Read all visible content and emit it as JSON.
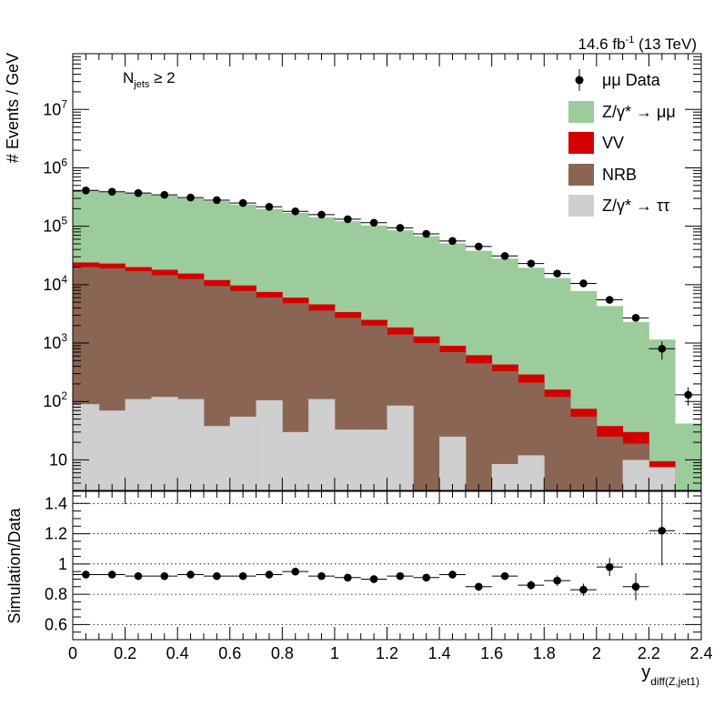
{
  "header": {
    "lumi": "14.6 fb",
    "lumi_exp": "-1",
    "energy": "(13 TeV)",
    "njets_base": "N",
    "njets_sub": "jets",
    "njets_cond": " ≥ 2"
  },
  "colors": {
    "zmm": "#9ccc9c",
    "vv": "#d40000",
    "nrb": "#8a6554",
    "ztt": "#cfcfcf",
    "data": "#000000"
  },
  "legend": [
    {
      "key": "data",
      "label": "μμ Data",
      "style": "marker"
    },
    {
      "key": "zmm",
      "label": "Z/γ* → μμ",
      "style": "box"
    },
    {
      "key": "vv",
      "label": "VV",
      "style": "box"
    },
    {
      "key": "nrb",
      "label": "NRB",
      "style": "box"
    },
    {
      "key": "ztt",
      "label": "Z/γ* → ττ",
      "style": "box"
    }
  ],
  "chart_data": [
    {
      "type": "stacked-histogram",
      "ylabel": "# Events / GeV",
      "yscale": "log",
      "ylim": [
        3,
        90000000
      ],
      "xlim": [
        0,
        2.4
      ],
      "ytick_labels": [
        "10",
        "10^2",
        "10^3",
        "10^4",
        "10^5",
        "10^6",
        "10^7"
      ],
      "ytick_values": [
        10,
        100,
        1000,
        10000,
        100000,
        1000000,
        10000000
      ],
      "bin_edges": [
        0,
        0.1,
        0.2,
        0.3,
        0.4,
        0.5,
        0.6,
        0.7,
        0.8,
        0.9,
        1.0,
        1.1,
        1.2,
        1.3,
        1.4,
        1.5,
        1.6,
        1.7,
        1.8,
        1.9,
        2.0,
        2.1,
        2.2,
        2.3,
        2.4
      ],
      "stack_tops": {
        "ztt": [
          90,
          70,
          110,
          120,
          110,
          38,
          55,
          105,
          30,
          110,
          33,
          33,
          85,
          0,
          25,
          0,
          8.5,
          12,
          0,
          0,
          0,
          10,
          7.5,
          0
        ],
        "nrb": [
          20000,
          19000,
          17000,
          14500,
          12500,
          9500,
          7800,
          6000,
          4800,
          3600,
          2700,
          2000,
          1400,
          1000,
          700,
          450,
          330,
          210,
          120,
          55,
          25,
          19,
          7.5,
          0
        ],
        "vv": [
          24000,
          23000,
          20000,
          18000,
          15500,
          12000,
          9700,
          7500,
          6000,
          4600,
          3400,
          2500,
          1850,
          1300,
          900,
          620,
          430,
          290,
          160,
          75,
          38,
          30,
          9.5,
          0
        ],
        "zmm": [
          410000,
          390000,
          370000,
          335000,
          300000,
          268000,
          235000,
          198000,
          170000,
          143000,
          122000,
          103000,
          85000,
          68000,
          51000,
          38000,
          28000,
          19500,
          13000,
          7800,
          4300,
          2300,
          1150,
          42
        ]
      },
      "data_points": [
        {
          "x": 0.05,
          "y": 410000
        },
        {
          "x": 0.15,
          "y": 390000
        },
        {
          "x": 0.25,
          "y": 370000
        },
        {
          "x": 0.35,
          "y": 345000
        },
        {
          "x": 0.45,
          "y": 310000
        },
        {
          "x": 0.55,
          "y": 280000
        },
        {
          "x": 0.65,
          "y": 250000
        },
        {
          "x": 0.75,
          "y": 215000
        },
        {
          "x": 0.85,
          "y": 180000
        },
        {
          "x": 0.95,
          "y": 158000
        },
        {
          "x": 1.05,
          "y": 132000
        },
        {
          "x": 1.15,
          "y": 115000
        },
        {
          "x": 1.25,
          "y": 94000
        },
        {
          "x": 1.35,
          "y": 74000
        },
        {
          "x": 1.45,
          "y": 56000
        },
        {
          "x": 1.55,
          "y": 45000
        },
        {
          "x": 1.65,
          "y": 31000
        },
        {
          "x": 1.75,
          "y": 23000
        },
        {
          "x": 1.85,
          "y": 15500
        },
        {
          "x": 1.95,
          "y": 10500
        },
        {
          "x": 2.05,
          "y": 5500
        },
        {
          "x": 2.15,
          "y": 2700
        },
        {
          "x": 2.25,
          "y": 800
        },
        {
          "x": 2.35,
          "y": 130
        }
      ]
    },
    {
      "type": "scatter",
      "ylabel": "Simulation/Data",
      "xlabel_base": "y",
      "xlabel_sub": "diff(Z,jet1)",
      "xlim": [
        0,
        2.4
      ],
      "ylim": [
        0.5,
        1.48
      ],
      "grid": "horizontal dotted",
      "xtick_labels": [
        "0",
        "0.2",
        "0.4",
        "0.6",
        "0.8",
        "1",
        "1.2",
        "1.4",
        "1.6",
        "1.8",
        "2",
        "2.2",
        "2.4"
      ],
      "ytick_labels": [
        "0.6",
        "0.8",
        "1",
        "1.2",
        "1.4"
      ],
      "points": [
        {
          "x": 0.05,
          "y": 0.93,
          "err": 0.01
        },
        {
          "x": 0.15,
          "y": 0.93,
          "err": 0.01
        },
        {
          "x": 0.25,
          "y": 0.92,
          "err": 0.01
        },
        {
          "x": 0.35,
          "y": 0.92,
          "err": 0.01
        },
        {
          "x": 0.45,
          "y": 0.93,
          "err": 0.01
        },
        {
          "x": 0.55,
          "y": 0.92,
          "err": 0.01
        },
        {
          "x": 0.65,
          "y": 0.92,
          "err": 0.01
        },
        {
          "x": 0.75,
          "y": 0.93,
          "err": 0.01
        },
        {
          "x": 0.85,
          "y": 0.95,
          "err": 0.01
        },
        {
          "x": 0.95,
          "y": 0.92,
          "err": 0.01
        },
        {
          "x": 1.05,
          "y": 0.91,
          "err": 0.01
        },
        {
          "x": 1.15,
          "y": 0.9,
          "err": 0.015
        },
        {
          "x": 1.25,
          "y": 0.92,
          "err": 0.015
        },
        {
          "x": 1.35,
          "y": 0.91,
          "err": 0.015
        },
        {
          "x": 1.45,
          "y": 0.93,
          "err": 0.015
        },
        {
          "x": 1.55,
          "y": 0.85,
          "err": 0.02
        },
        {
          "x": 1.65,
          "y": 0.92,
          "err": 0.025
        },
        {
          "x": 1.75,
          "y": 0.86,
          "err": 0.03
        },
        {
          "x": 1.85,
          "y": 0.89,
          "err": 0.035
        },
        {
          "x": 1.95,
          "y": 0.83,
          "err": 0.04
        },
        {
          "x": 2.05,
          "y": 0.98,
          "err": 0.06
        },
        {
          "x": 2.15,
          "y": 0.85,
          "err": 0.09
        },
        {
          "x": 2.25,
          "y": 1.22,
          "err": 0.23
        }
      ]
    }
  ]
}
